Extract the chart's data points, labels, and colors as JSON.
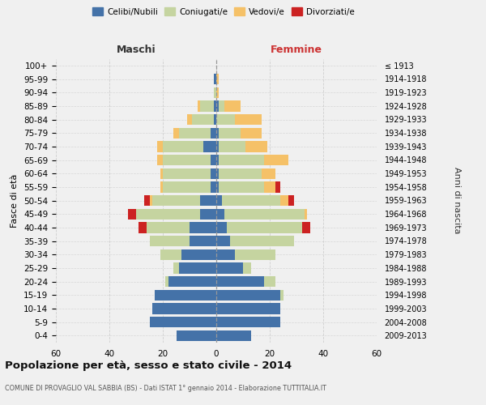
{
  "age_groups": [
    "0-4",
    "5-9",
    "10-14",
    "15-19",
    "20-24",
    "25-29",
    "30-34",
    "35-39",
    "40-44",
    "45-49",
    "50-54",
    "55-59",
    "60-64",
    "65-69",
    "70-74",
    "75-79",
    "80-84",
    "85-89",
    "90-94",
    "95-99",
    "100+"
  ],
  "birth_years": [
    "2009-2013",
    "2004-2008",
    "1999-2003",
    "1994-1998",
    "1989-1993",
    "1984-1988",
    "1979-1983",
    "1974-1978",
    "1969-1973",
    "1964-1968",
    "1959-1963",
    "1954-1958",
    "1949-1953",
    "1944-1948",
    "1939-1943",
    "1934-1938",
    "1929-1933",
    "1924-1928",
    "1919-1923",
    "1914-1918",
    "≤ 1913"
  ],
  "male": {
    "celibi": [
      15,
      25,
      24,
      23,
      18,
      14,
      13,
      10,
      10,
      6,
      6,
      2,
      2,
      2,
      5,
      2,
      1,
      1,
      0,
      1,
      0
    ],
    "coniugati": [
      0,
      0,
      0,
      0,
      1,
      2,
      8,
      15,
      16,
      24,
      18,
      18,
      18,
      18,
      15,
      12,
      8,
      5,
      1,
      0,
      0
    ],
    "vedovi": [
      0,
      0,
      0,
      0,
      0,
      0,
      0,
      0,
      0,
      0,
      1,
      1,
      1,
      2,
      2,
      2,
      2,
      1,
      0,
      0,
      0
    ],
    "divorziati": [
      0,
      0,
      0,
      0,
      0,
      0,
      0,
      0,
      3,
      3,
      2,
      0,
      0,
      0,
      0,
      0,
      0,
      0,
      0,
      0,
      0
    ]
  },
  "female": {
    "nubili": [
      13,
      24,
      24,
      24,
      18,
      10,
      7,
      5,
      4,
      3,
      2,
      1,
      1,
      1,
      1,
      1,
      0,
      1,
      0,
      0,
      0
    ],
    "coniugate": [
      0,
      0,
      0,
      1,
      4,
      3,
      15,
      24,
      28,
      30,
      22,
      17,
      16,
      17,
      10,
      8,
      7,
      2,
      0,
      0,
      0
    ],
    "vedove": [
      0,
      0,
      0,
      0,
      0,
      0,
      0,
      0,
      0,
      1,
      3,
      4,
      5,
      9,
      8,
      8,
      10,
      6,
      1,
      1,
      0
    ],
    "divorziate": [
      0,
      0,
      0,
      0,
      0,
      0,
      0,
      0,
      3,
      0,
      2,
      2,
      0,
      0,
      0,
      0,
      0,
      0,
      0,
      0,
      0
    ]
  },
  "colors": {
    "celibi": "#4472a8",
    "coniugati": "#c5d4a0",
    "vedovi": "#f5c168",
    "divorziati": "#cc2222"
  },
  "xlim": 60,
  "title": "Popolazione per età, sesso e stato civile - 2014",
  "subtitle": "COMUNE DI PROVAGLIO VAL SABBIA (BS) - Dati ISTAT 1° gennaio 2014 - Elaborazione TUTTITALIA.IT",
  "ylabel_left": "Fasce di età",
  "ylabel_right": "Anni di nascita",
  "label_maschi": "Maschi",
  "label_femmine": "Femmine",
  "legend_labels": [
    "Celibi/Nubili",
    "Coniugati/e",
    "Vedovi/e",
    "Divorziati/e"
  ],
  "bg_color": "#f0f0f0",
  "grid_color": "#cccccc"
}
